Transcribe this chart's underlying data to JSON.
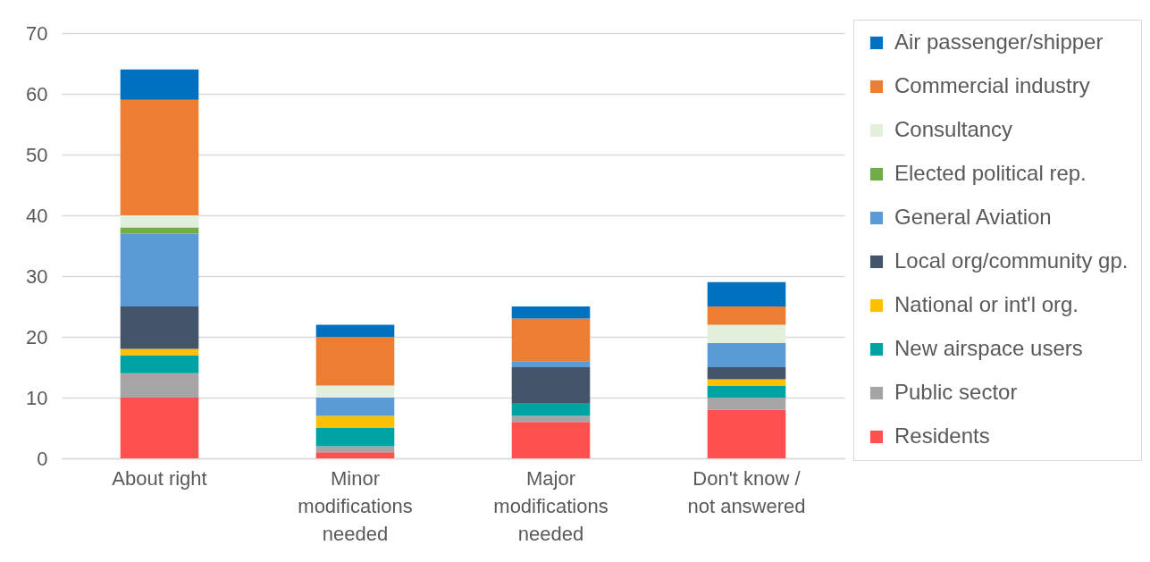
{
  "chart_data": {
    "type": "bar",
    "stacked": true,
    "categories": [
      "About right",
      "Minor modifications needed",
      "Major modifications needed",
      "Don't know / not answered"
    ],
    "series": [
      {
        "name": "Residents",
        "color": "#ff5050",
        "values": [
          10,
          1,
          6,
          8
        ]
      },
      {
        "name": "Public sector",
        "color": "#a5a5a5",
        "values": [
          4,
          1,
          1,
          2
        ]
      },
      {
        "name": "New airspace users",
        "color": "#00a3a3",
        "values": [
          3,
          3,
          2,
          2
        ]
      },
      {
        "name": "National or int'l org.",
        "color": "#ffc000",
        "values": [
          1,
          2,
          0,
          1
        ]
      },
      {
        "name": "Local org/community gp.",
        "color": "#44546a",
        "values": [
          7,
          0,
          6,
          2
        ]
      },
      {
        "name": "General Aviation",
        "color": "#5b9bd5",
        "values": [
          12,
          3,
          1,
          4
        ]
      },
      {
        "name": "Elected political rep.",
        "color": "#70ad47",
        "values": [
          1,
          0,
          0,
          0
        ]
      },
      {
        "name": "Consultancy",
        "color": "#e2efda",
        "values": [
          2,
          2,
          0,
          3
        ]
      },
      {
        "name": "Commercial industry",
        "color": "#ed7d31",
        "values": [
          19,
          8,
          7,
          3
        ]
      },
      {
        "name": "Air passenger/shipper",
        "color": "#0070c0",
        "values": [
          5,
          2,
          2,
          4
        ]
      }
    ],
    "ylim": [
      0,
      70
    ],
    "yticks": [
      0,
      10,
      20,
      30,
      40,
      50,
      60,
      70
    ],
    "grid": "y",
    "legend": "right"
  }
}
